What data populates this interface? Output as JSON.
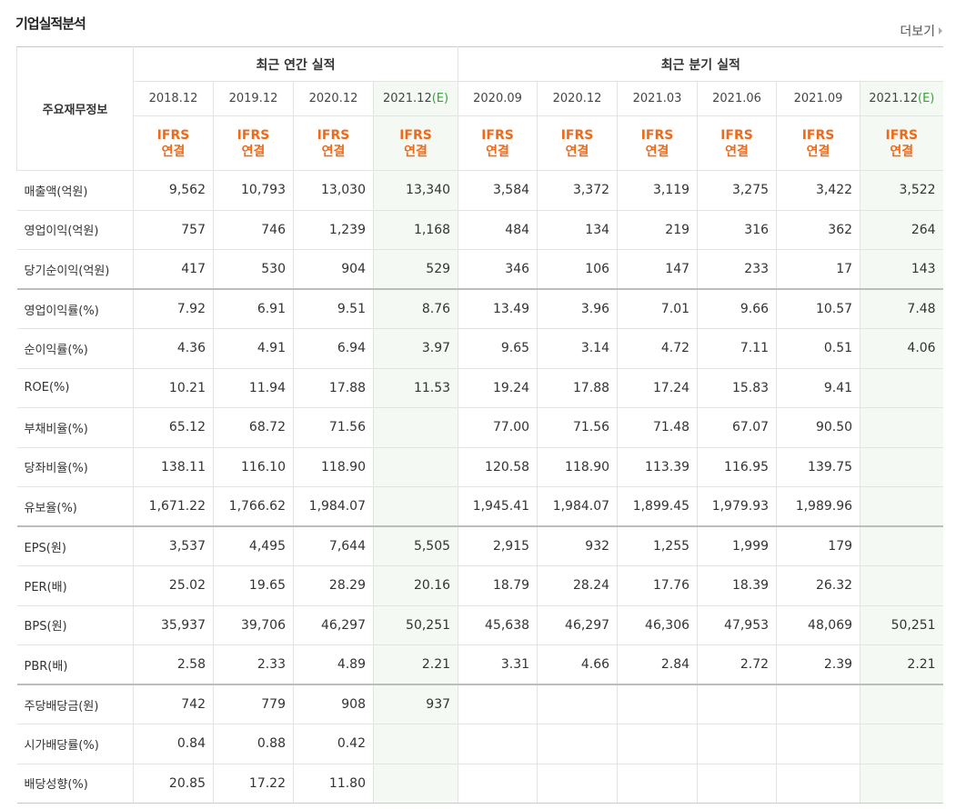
{
  "header": {
    "title": "기업실적분석",
    "more": "더보기"
  },
  "table": {
    "corner": "주요재무정보",
    "groups": [
      "최근 연간 실적",
      "최근 분기 실적"
    ],
    "columns": [
      {
        "period": "2018.12",
        "standard": "IFRS",
        "scope": "연결"
      },
      {
        "period": "2019.12",
        "standard": "IFRS",
        "scope": "연결"
      },
      {
        "period": "2020.12",
        "standard": "IFRS",
        "scope": "연결"
      },
      {
        "period": "2021.12",
        "mark": "(E)",
        "standard": "IFRS",
        "scope": "연결"
      },
      {
        "period": "2020.09",
        "standard": "IFRS",
        "scope": "연결"
      },
      {
        "period": "2020.12",
        "standard": "IFRS",
        "scope": "연결"
      },
      {
        "period": "2021.03",
        "standard": "IFRS",
        "scope": "연결"
      },
      {
        "period": "2021.06",
        "standard": "IFRS",
        "scope": "연결"
      },
      {
        "period": "2021.09",
        "standard": "IFRS",
        "scope": "연결"
      },
      {
        "period": "2021.12",
        "mark": "(E)",
        "standard": "IFRS",
        "scope": "연결"
      }
    ],
    "rows": [
      {
        "label": "매출액(억원)",
        "values": [
          "9,562",
          "10,793",
          "13,030",
          "13,340",
          "3,584",
          "3,372",
          "3,119",
          "3,275",
          "3,422",
          "3,522"
        ]
      },
      {
        "label": "영업이익(억원)",
        "values": [
          "757",
          "746",
          "1,239",
          "1,168",
          "484",
          "134",
          "219",
          "316",
          "362",
          "264"
        ]
      },
      {
        "label": "당기순이익(억원)",
        "values": [
          "417",
          "530",
          "904",
          "529",
          "346",
          "106",
          "147",
          "233",
          "17",
          "143"
        ]
      },
      {
        "label": "영업이익률(%)",
        "values": [
          "7.92",
          "6.91",
          "9.51",
          "8.76",
          "13.49",
          "3.96",
          "7.01",
          "9.66",
          "10.57",
          "7.48"
        ]
      },
      {
        "label": "순이익률(%)",
        "values": [
          "4.36",
          "4.91",
          "6.94",
          "3.97",
          "9.65",
          "3.14",
          "4.72",
          "7.11",
          "0.51",
          "4.06"
        ]
      },
      {
        "label": "ROE(%)",
        "values": [
          "10.21",
          "11.94",
          "17.88",
          "11.53",
          "19.24",
          "17.88",
          "17.24",
          "15.83",
          "9.41",
          null
        ]
      },
      {
        "label": "부채비율(%)",
        "values": [
          "65.12",
          "68.72",
          "71.56",
          null,
          "77.00",
          "71.56",
          "71.48",
          "67.07",
          "90.50",
          null
        ]
      },
      {
        "label": "당좌비율(%)",
        "values": [
          "138.11",
          "116.10",
          "118.90",
          null,
          "120.58",
          "118.90",
          "113.39",
          "116.95",
          "139.75",
          null
        ]
      },
      {
        "label": "유보율(%)",
        "values": [
          "1,671.22",
          "1,766.62",
          "1,984.07",
          null,
          "1,945.41",
          "1,984.07",
          "1,899.45",
          "1,979.93",
          "1,989.96",
          null
        ]
      },
      {
        "label": "EPS(원)",
        "values": [
          "3,537",
          "4,495",
          "7,644",
          "5,505",
          "2,915",
          "932",
          "1,255",
          "1,999",
          "179",
          null
        ]
      },
      {
        "label": "PER(배)",
        "values": [
          "25.02",
          "19.65",
          "28.29",
          "20.16",
          "18.79",
          "28.24",
          "17.76",
          "18.39",
          "26.32",
          null
        ]
      },
      {
        "label": "BPS(원)",
        "values": [
          "35,937",
          "39,706",
          "46,297",
          "50,251",
          "45,638",
          "46,297",
          "46,306",
          "47,953",
          "48,069",
          "50,251"
        ]
      },
      {
        "label": "PBR(배)",
        "values": [
          "2.58",
          "2.33",
          "4.89",
          "2.21",
          "3.31",
          "4.66",
          "2.84",
          "2.72",
          "2.39",
          "2.21"
        ]
      },
      {
        "label": "주당배당금(원)",
        "values": [
          "742",
          "779",
          "908",
          "937",
          null,
          null,
          null,
          null,
          null,
          null
        ]
      },
      {
        "label": "시가배당률(%)",
        "values": [
          "0.84",
          "0.88",
          "0.42",
          null,
          null,
          null,
          null,
          null,
          null,
          null
        ]
      },
      {
        "label": "배당성향(%)",
        "values": [
          "20.85",
          "17.22",
          "11.80",
          null,
          null,
          null,
          null,
          null,
          null,
          null
        ]
      }
    ]
  }
}
